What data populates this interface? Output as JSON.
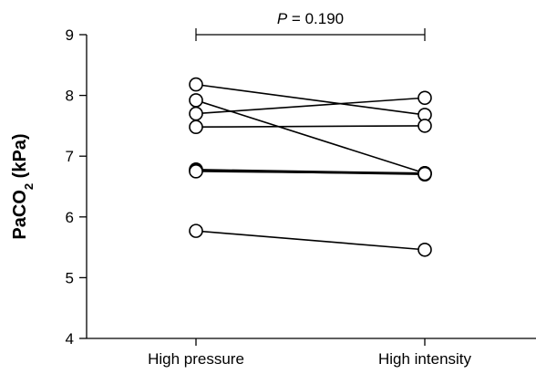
{
  "chart_data": {
    "type": "line",
    "title": "",
    "xlabel": "",
    "ylabel": "PaCO2 (kPa)",
    "ylabel_main": "PaCO",
    "ylabel_sub": "2",
    "ylabel_unit": " (kPa)",
    "categories": [
      "High pressure",
      "High intensity"
    ],
    "ylim": [
      4,
      9
    ],
    "yticks": [
      4,
      5,
      6,
      7,
      8,
      9
    ],
    "series": [
      {
        "values": [
          8.18,
          7.68
        ]
      },
      {
        "values": [
          7.92,
          6.72
        ]
      },
      {
        "values": [
          7.7,
          7.96
        ]
      },
      {
        "values": [
          7.48,
          7.5
        ]
      },
      {
        "values": [
          6.78,
          6.72
        ]
      },
      {
        "values": [
          6.76,
          6.7
        ]
      },
      {
        "values": [
          6.75,
          6.71
        ]
      },
      {
        "values": [
          5.77,
          5.46
        ]
      }
    ],
    "annotation": {
      "italic": "P",
      "text": " = 0.190",
      "from": "High pressure",
      "to": "High intensity"
    },
    "grid": false,
    "marker": "open-circle",
    "line_color": "#000000"
  }
}
